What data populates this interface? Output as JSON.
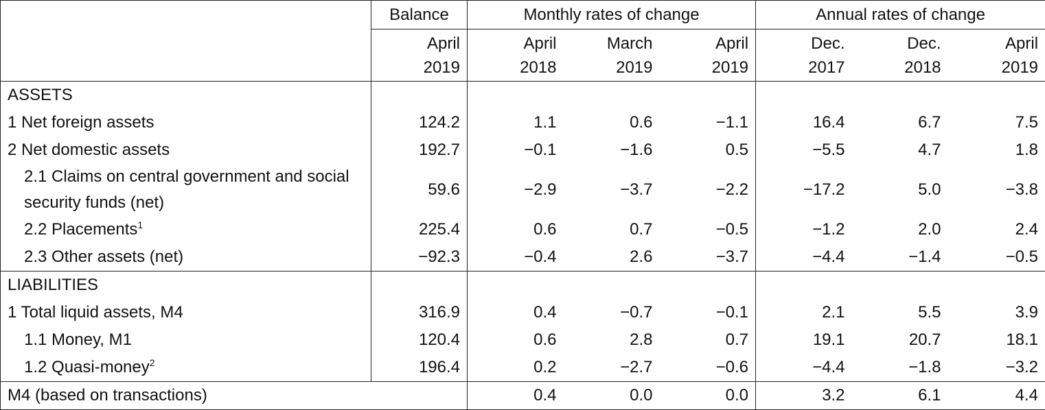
{
  "table": {
    "header": {
      "groups": [
        "Balance",
        "Monthly rates of change",
        "Annual rates of change"
      ],
      "columns": [
        [
          "April",
          "2019"
        ],
        [
          "April",
          "2018"
        ],
        [
          "March",
          "2019"
        ],
        [
          "April",
          "2019"
        ],
        [
          "Dec.",
          "2017"
        ],
        [
          "Dec.",
          "2018"
        ],
        [
          "April",
          "2019"
        ]
      ]
    },
    "sections": [
      {
        "title": "ASSETS",
        "rows": [
          {
            "label": "1 Net foreign assets",
            "values": [
              "124.2",
              "1.1",
              "0.6",
              "−1.1",
              "16.4",
              "6.7",
              "7.5"
            ]
          },
          {
            "label": "2 Net domestic assets",
            "values": [
              "192.7",
              "−0.1",
              "−1.6",
              "0.5",
              "−5.5",
              "4.7",
              "1.8"
            ],
            "children": [
              {
                "label": "2.1 Claims on central government and social security funds (net)",
                "values": [
                  "59.6",
                  "−2.9",
                  "−3.7",
                  "−2.2",
                  "−17.2",
                  "5.0",
                  "−3.8"
                ]
              },
              {
                "label": "2.2 Placements",
                "note": "1",
                "values": [
                  "225.4",
                  "0.6",
                  "0.7",
                  "−0.5",
                  "−1.2",
                  "2.0",
                  "2.4"
                ]
              },
              {
                "label": "2.3 Other assets (net)",
                "values": [
                  "−92.3",
                  "−0.4",
                  "2.6",
                  "−3.7",
                  "−4.4",
                  "−1.4",
                  "−0.5"
                ]
              }
            ]
          }
        ]
      },
      {
        "title": "LIABILITIES",
        "rows": [
          {
            "label": "1 Total liquid assets, M4",
            "values": [
              "316.9",
              "0.4",
              "−0.7",
              "−0.1",
              "2.1",
              "5.5",
              "3.9"
            ],
            "children": [
              {
                "label": "1.1 Money, M1",
                "values": [
                  "120.4",
                  "0.6",
                  "2.8",
                  "0.7",
                  "19.1",
                  "20.7",
                  "18.1"
                ]
              },
              {
                "label": "1.2 Quasi-money",
                "note": "2",
                "values": [
                  "196.4",
                  "0.2",
                  "−2.7",
                  "−0.6",
                  "−4.4",
                  "−1.8",
                  "−3.2"
                ]
              }
            ]
          }
        ]
      }
    ],
    "total": {
      "label": "M4 (based on transactions)",
      "values": [
        "0.4",
        "0.0",
        "0.0",
        "3.2",
        "6.1",
        "4.4"
      ]
    }
  }
}
